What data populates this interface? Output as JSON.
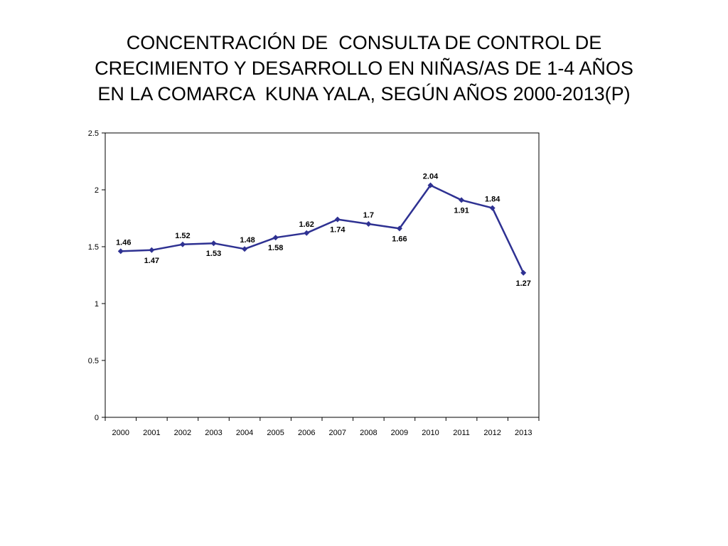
{
  "title_lines": [
    "CONCENTRACIÓN DE  CONSULTA DE CONTROL DE",
    "CRECIMIENTO Y DESARROLLO EN NIÑAS/AS DE 1-4 AÑOS",
    "EN LA COMARCA  KUNA YALA, SEGÚN AÑOS 2000-2013(P)"
  ],
  "colors": {
    "series": "#2e3192",
    "axis": "#000000"
  },
  "chart_data": {
    "type": "line",
    "title": "CONCENTRACIÓN DE  CONSULTA DE CONTROL DE CRECIMIENTO Y DESARROLLO EN NIÑAS/AS DE 1-4 AÑOS EN LA COMARCA  KUNA YALA, SEGÚN AÑOS 2000-2013(P)",
    "categories": [
      "2000",
      "2001",
      "2002",
      "2003",
      "2004",
      "2005",
      "2006",
      "2007",
      "2008",
      "2009",
      "2010",
      "2011",
      "2012",
      "2013"
    ],
    "values": [
      1.46,
      1.47,
      1.52,
      1.53,
      1.48,
      1.58,
      1.62,
      1.74,
      1.7,
      1.66,
      2.04,
      1.91,
      1.84,
      1.27
    ],
    "data_labels": [
      "1.46",
      "1.47",
      "1.52",
      "1.53",
      "1.48",
      "1.58",
      "1.62",
      "1.74",
      "1.7",
      "1.66",
      "2.04",
      "1.91",
      "1.84",
      "1.27"
    ],
    "yticks": [
      "0",
      "0.5",
      "1",
      "1.5",
      "2",
      "2.5"
    ],
    "ylim": [
      0,
      2.5
    ],
    "xlabel": "",
    "ylabel": "",
    "grid": false,
    "legend": "none",
    "marker": "diamond"
  }
}
